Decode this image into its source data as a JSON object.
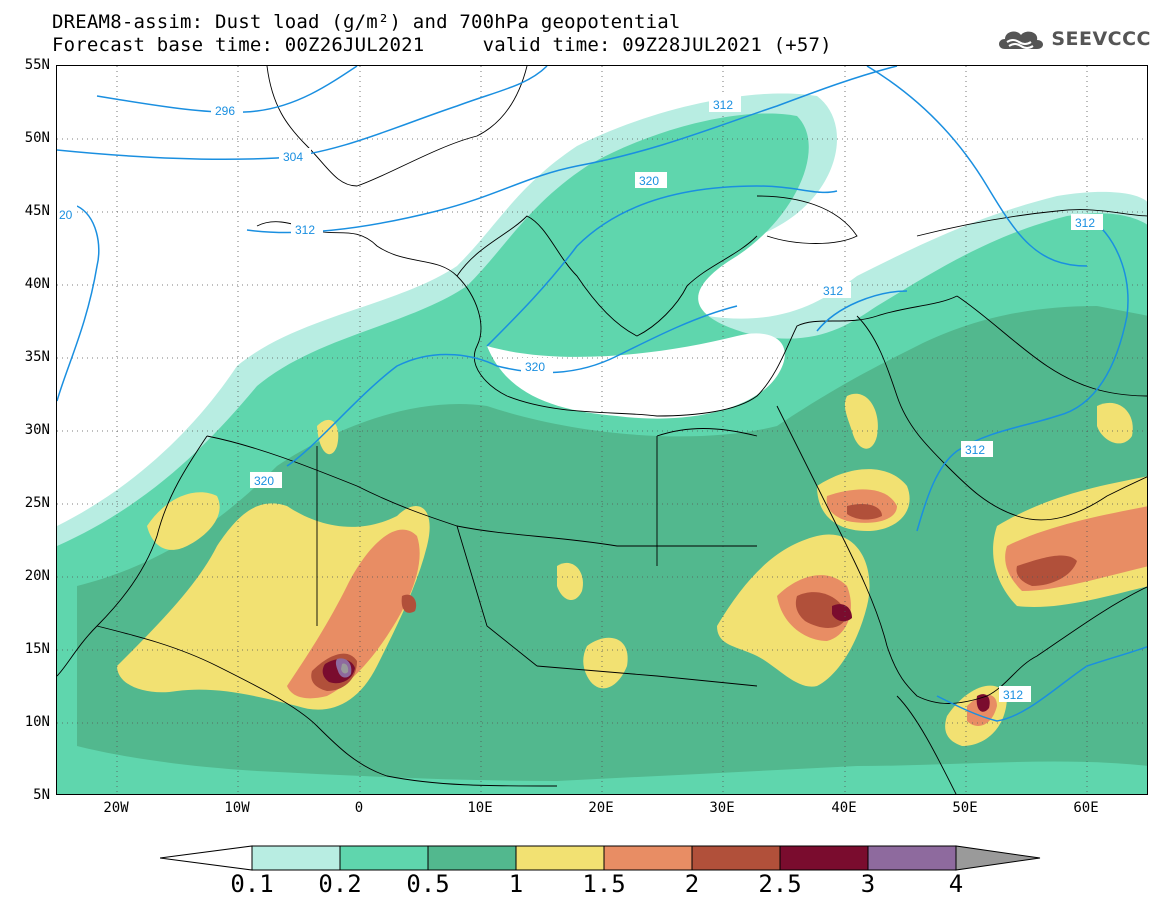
{
  "header": {
    "title_line1": "DREAM8-assim: Dust load (g/m²) and 700hPa geopotential",
    "title_line2": "Forecast base time: 00Z26JUL2021     valid time: 09Z28JUL2021 (+57)",
    "logo_text": "SEEVCCC",
    "logo_icon": "cloud-icon"
  },
  "map": {
    "lat_labels": [
      "55N",
      "50N",
      "45N",
      "40N",
      "35N",
      "30N",
      "25N",
      "20N",
      "15N",
      "10N",
      "5N"
    ],
    "lon_labels": [
      "20W",
      "10W",
      "0",
      "10E",
      "20E",
      "30E",
      "40E",
      "50E",
      "60E"
    ],
    "contour_labels": [
      "296",
      "304",
      "312",
      "320",
      "320",
      "312",
      "312",
      "312",
      "312",
      "312",
      "320",
      "20"
    ],
    "contour_color": "#1a8fe0"
  },
  "legend": {
    "tick_labels": [
      "0.1",
      "0.2",
      "0.5",
      "1",
      "1.5",
      "2",
      "2.5",
      "3",
      "4"
    ],
    "colors": [
      "#ffffff",
      "#b8ede2",
      "#5fd6ad",
      "#52b88e",
      "#f2e172",
      "#e88d64",
      "#b1503a",
      "#7a0c2e",
      "#8e6a9e",
      "#9a9a9a"
    ]
  }
}
